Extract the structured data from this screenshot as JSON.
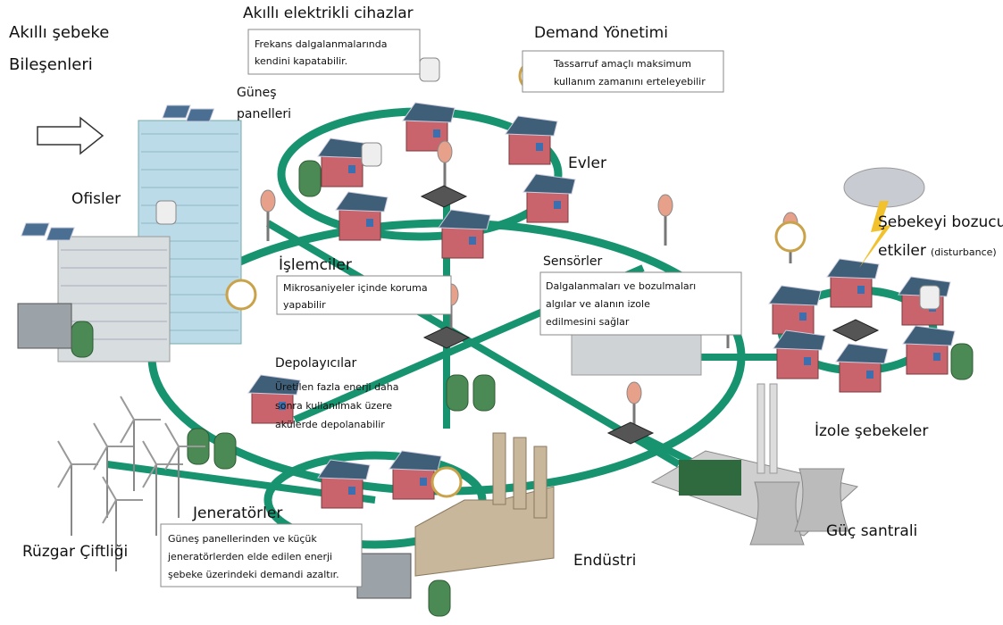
{
  "title": {
    "lines": [
      "Akıllı şebeke",
      "Bileşenleri"
    ]
  },
  "components": [
    {
      "label": [
        "Akıllı elektrikli cihazlar"
      ],
      "description": [
        "Frekans dalgalanmalarında",
        "kendini kapatabilir."
      ]
    },
    {
      "label": [
        "Demand Yönetimi"
      ],
      "description": [
        "Tassarruf amaçlı maksimum",
        "kullanım zamanını erteleyebilir"
      ]
    },
    {
      "label": [
        "Güneş",
        "panelleri"
      ]
    },
    {
      "label": [
        "Ofisler"
      ]
    },
    {
      "label": [
        "Evler"
      ]
    },
    {
      "label": [
        "İşlemciler"
      ],
      "description": [
        "Mikrosaniyeler içinde koruma",
        "yapabilir"
      ]
    },
    {
      "label": [
        "Sensörler"
      ],
      "description": [
        "Dalgalanmaları ve bozulmaları",
        "algılar ve alanın izole",
        "edilmesini sağlar"
      ]
    },
    {
      "label": [
        "Şebekeyi bozucu",
        "etkiler"
      ],
      "note": "(disturbance)"
    },
    {
      "label": [
        "Depolayıcılar"
      ],
      "description": [
        "Üretilen fazla enerji daha",
        "sonra kullanılmak üzere",
        "akülerde depolanabilir"
      ]
    },
    {
      "label": [
        "İzole şebekeler"
      ]
    },
    {
      "label": [
        "Rüzgar Çiftliği"
      ]
    },
    {
      "label": [
        "Jeneratörler"
      ],
      "description": [
        "Güneş panellerinden ve küçük",
        "jeneratörlerden elde edilen enerji",
        "şebeke üzerindeki demandi azaltır."
      ]
    },
    {
      "label": [
        "Endüstri"
      ]
    },
    {
      "label": [
        "Güç santrali"
      ]
    }
  ]
}
